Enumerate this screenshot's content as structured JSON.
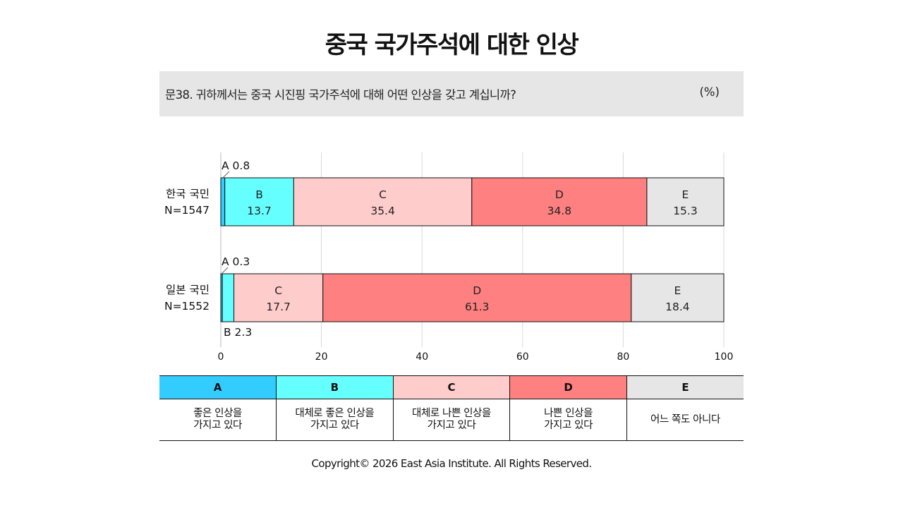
{
  "title": "중국 국가주석에 대한 인상",
  "question": {
    "text": "문38. 귀하께서는 중국 시진핑 국가주석에 대해 어떤 인상을 갖고 계십니까?",
    "unit": "(%)"
  },
  "chart_data": {
    "type": "bar",
    "orientation": "horizontal",
    "stacked": true,
    "xlim": [
      0,
      100
    ],
    "x_ticks": [
      0,
      20,
      40,
      60,
      80,
      100
    ],
    "grid": true,
    "rows": [
      {
        "name": "한국 국민",
        "n_label": "N=1547",
        "values": {
          "A": 0.8,
          "B": 13.7,
          "C": 35.4,
          "D": 34.8,
          "E": 15.3
        },
        "inside_labels": [
          "B",
          "C",
          "D",
          "E"
        ],
        "callouts": [
          {
            "category": "A",
            "text": "A 0.8",
            "position": "above"
          }
        ]
      },
      {
        "name": "일본 국민",
        "n_label": "N=1552",
        "values": {
          "A": 0.3,
          "B": 2.3,
          "C": 17.7,
          "D": 61.3,
          "E": 18.4
        },
        "inside_labels": [
          "C",
          "D",
          "E"
        ],
        "callouts": [
          {
            "category": "A",
            "text": "A 0.3",
            "position": "above"
          },
          {
            "category": "B",
            "text": "B 2.3",
            "position": "below"
          }
        ]
      }
    ],
    "categories": [
      {
        "key": "A",
        "color": "#33ccff",
        "label": "좋은 인상을 가지고 있다"
      },
      {
        "key": "B",
        "color": "#66ffff",
        "label": "대체로 좋은 인상을 가지고 있다"
      },
      {
        "key": "C",
        "color": "#ffcccc",
        "label": "대체로 나쁜 인상을 가지고 있다"
      },
      {
        "key": "D",
        "color": "#ff8080",
        "label": "나쁜 인상을 가지고 있다"
      },
      {
        "key": "E",
        "color": "#e6e6e6",
        "label": "어느 쪽도 아니다"
      }
    ]
  },
  "legend": [
    {
      "key": "A",
      "color": "#33ccff",
      "line1": "좋은 인상을",
      "line2": "가지고 있다"
    },
    {
      "key": "B",
      "color": "#66ffff",
      "line1": "대체로 좋은 인상을",
      "line2": "가지고 있다"
    },
    {
      "key": "C",
      "color": "#ffcccc",
      "line1": "대체로  나쁜  인상을",
      "line2": "가지고  있다"
    },
    {
      "key": "D",
      "color": "#ff8080",
      "line1": "나쁜  인상을",
      "line2": "가지고  있다"
    },
    {
      "key": "E",
      "color": "#e6e6e6",
      "line1": "어느 쪽도 아니다",
      "line2": ""
    }
  ],
  "copyright": "Copyright© 2026 East Asia Institute. All Rights Reserved."
}
